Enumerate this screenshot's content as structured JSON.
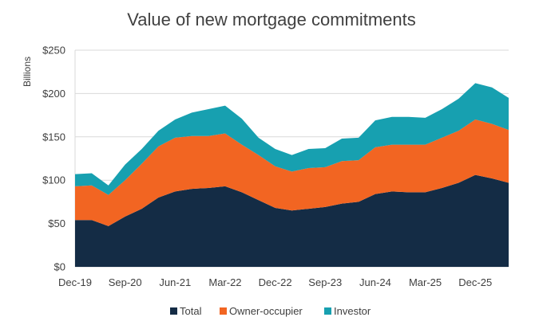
{
  "chart_data": {
    "type": "area",
    "stacked": true,
    "title": "Value of new mortgage commitments",
    "ylabel": "Billions",
    "xlabel": "",
    "ylim": [
      0,
      250
    ],
    "y_ticks": [
      0,
      50,
      100,
      150,
      200,
      250
    ],
    "y_tick_labels": [
      "$0",
      "$50",
      "$100",
      "$150",
      "$200",
      "$250"
    ],
    "x_tick_labels": [
      "Dec-19",
      "Sep-20",
      "Jun-21",
      "Mar-22",
      "Dec-22",
      "Sep-23",
      "Jun-24",
      "Mar-25",
      "Dec-25"
    ],
    "x_tick_indices": [
      0,
      3,
      6,
      9,
      12,
      15,
      18,
      21,
      24
    ],
    "grid": true,
    "legend_position": "bottom",
    "quarters": 27,
    "series": [
      {
        "name": "Total",
        "color": "#142c45",
        "values": [
          54,
          54,
          47,
          58,
          67,
          80,
          87,
          90,
          91,
          93,
          86,
          77,
          68,
          65,
          67,
          69,
          73,
          75,
          84,
          87,
          86,
          86,
          91,
          97,
          106,
          102,
          97
        ]
      },
      {
        "name": "Owner-occupier",
        "color": "#f26522",
        "values": [
          39,
          40,
          36,
          42,
          52,
          59,
          62,
          61,
          60,
          61,
          55,
          52,
          48,
          45,
          47,
          46,
          49,
          48,
          54,
          54,
          55,
          55,
          58,
          60,
          64,
          63,
          61
        ]
      },
      {
        "name": "Investor",
        "color": "#17a0b0",
        "values": [
          14,
          14,
          11,
          18,
          17,
          18,
          21,
          27,
          31,
          32,
          30,
          20,
          20,
          19,
          22,
          22,
          26,
          26,
          31,
          32,
          32,
          31,
          33,
          37,
          42,
          42,
          37
        ]
      }
    ]
  }
}
